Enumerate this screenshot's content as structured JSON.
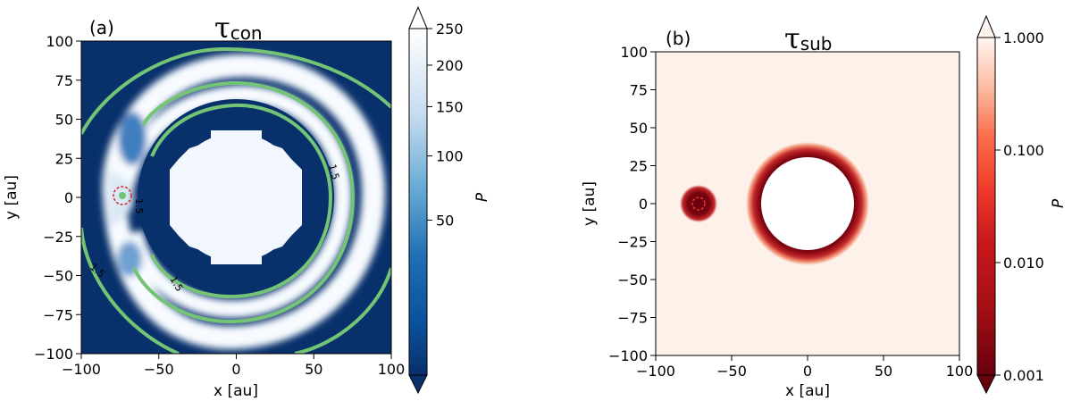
{
  "chart_data": [
    {
      "type": "heatmap",
      "panel_label": "(a)",
      "title": "τ",
      "title_subscript": "con",
      "xlabel": "x [au]",
      "ylabel": "y [au]",
      "xlim": [
        -100,
        100
      ],
      "ylim": [
        -100,
        100
      ],
      "xticks": [
        -100,
        -50,
        0,
        50,
        100
      ],
      "yticks": [
        100,
        75,
        50,
        25,
        0,
        -25,
        -50,
        -75,
        -100
      ],
      "colormap": "Blues_r",
      "colorbar": {
        "label": "P",
        "ticks": [
          250,
          200,
          150,
          100,
          50
        ],
        "min": 0,
        "max": 250,
        "extend": "both",
        "colors": [
          "#08306b",
          "#2171b5",
          "#6baed6",
          "#c6dbef",
          "#ffffff"
        ]
      },
      "features": {
        "inner_disk_radius": 43,
        "spiral_arm": "two-armed white spiral from planet",
        "planet_marker": {
          "x": -73,
          "y": 0,
          "circle_radius": 4
        },
        "contour_level": 1.5,
        "contour_labels": [
          "1.5",
          "1.5",
          "1.5",
          "1.5"
        ],
        "contour_color": "#74c476",
        "planet_circle_color": "#d62728"
      }
    },
    {
      "type": "heatmap",
      "panel_label": "(b)",
      "title": "τ",
      "title_subscript": "sub",
      "xlabel": "x [au]",
      "ylabel": "y [au]",
      "xlim": [
        -100,
        100
      ],
      "ylim": [
        -100,
        100
      ],
      "xticks": [
        -100,
        -50,
        0,
        50,
        100
      ],
      "yticks": [
        100,
        75,
        50,
        25,
        0,
        -25,
        -50,
        -75,
        -100
      ],
      "colormap": "Reds_r",
      "colorbar": {
        "label": "P",
        "ticks": [
          "1.000",
          "0.100",
          "0.010",
          "0.001"
        ],
        "scale": "log",
        "min": 0.001,
        "max": 1.0,
        "extend": "both",
        "colors": [
          "#67000d",
          "#a50f15",
          "#cb181d",
          "#ef3b2c",
          "#fb6a4a",
          "#fcbba1",
          "#fff5f0"
        ]
      },
      "features": {
        "background_color": "#fdf1ea",
        "central_ring": {
          "inner_radius": 30,
          "outer_radius": 40
        },
        "planet_blob": {
          "x": -73,
          "y": 0,
          "radius": 12,
          "inner_circle_radius": 4
        },
        "planet_circle_color": "#e34a33"
      }
    }
  ]
}
